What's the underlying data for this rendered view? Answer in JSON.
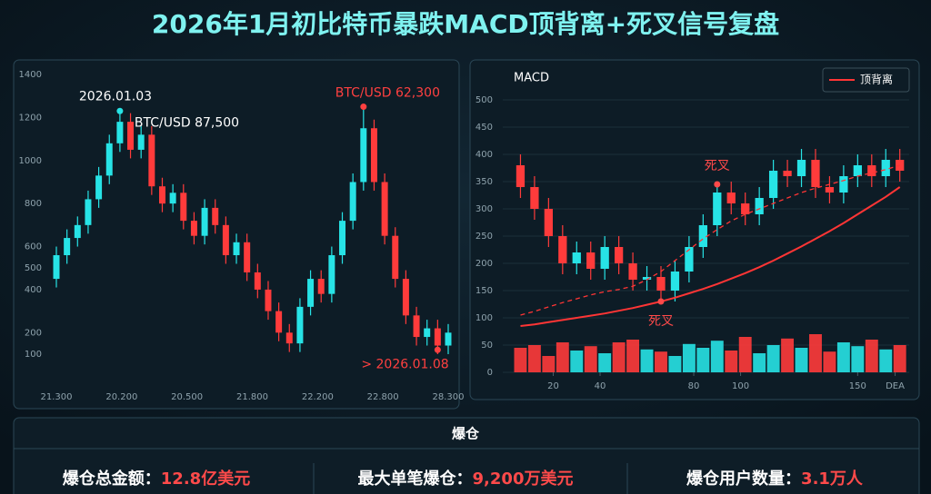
{
  "title": "2026年1月初比特币暴跌MACD顶背离+死叉信号复盘",
  "chart_data": [
    {
      "type": "candlestick",
      "xticks": [
        "21.300",
        "20.200",
        "20.500",
        "21.800",
        "22.200",
        "22.800",
        "28.300"
      ],
      "ylim": [
        100,
        1400
      ],
      "yticks": [
        1400,
        1200,
        1000,
        800,
        600,
        500,
        400,
        200,
        100
      ],
      "grid": false,
      "up_color": "#27e3e6",
      "down_color": "#ff3b3b",
      "open": [
        450,
        560,
        640,
        700,
        820,
        930,
        1080,
        1180,
        1050,
        1120,
        880,
        800,
        850,
        720,
        650,
        780,
        700,
        560,
        620,
        480,
        400,
        300,
        200,
        150,
        320,
        450,
        380,
        560,
        720,
        900,
        1150,
        900,
        650,
        450,
        280,
        180,
        220,
        140
      ],
      "high": [
        600,
        680,
        740,
        860,
        970,
        1120,
        1230,
        1220,
        1160,
        1160,
        920,
        890,
        890,
        760,
        820,
        820,
        740,
        660,
        660,
        520,
        440,
        340,
        240,
        360,
        490,
        490,
        600,
        760,
        940,
        1250,
        1190,
        940,
        690,
        490,
        320,
        260,
        260,
        240
      ],
      "low": [
        410,
        520,
        600,
        660,
        780,
        890,
        1040,
        1010,
        1010,
        840,
        760,
        760,
        680,
        610,
        610,
        660,
        520,
        520,
        440,
        360,
        260,
        160,
        110,
        110,
        280,
        340,
        340,
        520,
        680,
        860,
        860,
        610,
        410,
        240,
        140,
        140,
        100,
        100
      ],
      "close": [
        560,
        640,
        700,
        820,
        930,
        1080,
        1180,
        1050,
        1120,
        880,
        800,
        850,
        720,
        650,
        780,
        700,
        560,
        620,
        480,
        400,
        300,
        200,
        150,
        320,
        450,
        380,
        560,
        720,
        900,
        1150,
        900,
        650,
        450,
        280,
        180,
        220,
        140,
        200
      ],
      "annotations": [
        {
          "text": "2026.01.03",
          "x": 6,
          "y": 1230,
          "color": "#ffffff",
          "marker": "#27e3e6"
        },
        {
          "text": "BTC/USD 87,500",
          "x": 6,
          "y": 1230,
          "color": "#ffffff"
        },
        {
          "text": "BTC/USD 62,300",
          "x": 29,
          "y": 1250,
          "color": "#ff4040",
          "marker": "#ff4040"
        },
        {
          "text": "> 2026.01.08",
          "x": 36,
          "y": 120,
          "color": "#ff4040",
          "marker": "#ff4040"
        }
      ]
    },
    {
      "type": "candlestick",
      "title": "MACD",
      "x": [
        6,
        12,
        18,
        24,
        30,
        36,
        42,
        48,
        54,
        60,
        66,
        72,
        78,
        84,
        90,
        96,
        102,
        108,
        114,
        120,
        126,
        132,
        138,
        144,
        150,
        156,
        162,
        168
      ],
      "xlim": [
        0,
        172
      ],
      "xticks": [
        20,
        40,
        80,
        100,
        150,
        {
          "value": 166,
          "label": "DEA"
        }
      ],
      "ylim": [
        0,
        500
      ],
      "yticks": [
        0,
        50,
        100,
        150,
        200,
        250,
        300,
        350,
        400,
        450,
        500
      ],
      "grid": true,
      "up_color": "#27e3e6",
      "down_color": "#ff3b3b",
      "open": [
        380,
        340,
        300,
        250,
        200,
        220,
        190,
        230,
        200,
        170,
        175,
        150,
        185,
        230,
        270,
        330,
        310,
        290,
        320,
        370,
        360,
        390,
        340,
        330,
        360,
        380,
        360,
        390
      ],
      "high": [
        400,
        360,
        320,
        270,
        240,
        240,
        250,
        250,
        220,
        195,
        195,
        205,
        250,
        290,
        350,
        350,
        330,
        340,
        390,
        390,
        410,
        410,
        360,
        380,
        400,
        400,
        410,
        410
      ],
      "low": [
        320,
        280,
        230,
        180,
        180,
        170,
        170,
        180,
        150,
        150,
        130,
        130,
        165,
        210,
        250,
        290,
        270,
        270,
        300,
        340,
        340,
        320,
        310,
        310,
        340,
        340,
        340,
        350
      ],
      "close": [
        340,
        300,
        250,
        200,
        220,
        190,
        230,
        200,
        170,
        175,
        150,
        185,
        230,
        270,
        330,
        310,
        290,
        320,
        370,
        360,
        390,
        340,
        330,
        360,
        380,
        360,
        390,
        370
      ],
      "volume": [
        45,
        50,
        30,
        55,
        40,
        48,
        35,
        55,
        60,
        42,
        38,
        30,
        52,
        45,
        58,
        40,
        65,
        35,
        50,
        62,
        45,
        70,
        38,
        55,
        48,
        60,
        42,
        50
      ],
      "lines": [
        {
          "name": "顶背离",
          "color": "#ff3535",
          "values": [
            85,
            88,
            92,
            96,
            100,
            104,
            108,
            113,
            118,
            124,
            130,
            137,
            145,
            153,
            162,
            172,
            182,
            193,
            205,
            218,
            231,
            245,
            259,
            274,
            290,
            306,
            322,
            340
          ]
        },
        {
          "color": "#ff3535",
          "dash": true,
          "values": [
            105,
            112,
            120,
            128,
            135,
            142,
            148,
            152,
            158,
            170,
            185,
            205,
            225,
            245,
            262,
            278,
            290,
            300,
            310,
            320,
            330,
            338,
            345,
            352,
            360,
            366,
            372,
            380
          ]
        }
      ],
      "annotations": [
        {
          "text": "死叉",
          "x": 90,
          "y": 345,
          "color": "#ff4a4a",
          "marker": "#ff4a4a"
        },
        {
          "text": "死叉",
          "x": 66,
          "y": 130,
          "color": "#ff4a4a",
          "marker": "#ff4a4a"
        }
      ]
    }
  ],
  "summary": {
    "heading": "爆仓",
    "items": [
      {
        "label": "爆仓总金额：",
        "value": "12.8亿美元"
      },
      {
        "label": "最大单笔爆仓：",
        "value": "9,200万美元"
      },
      {
        "label": "爆仓用户数量：",
        "value": "3.1万人"
      }
    ]
  }
}
